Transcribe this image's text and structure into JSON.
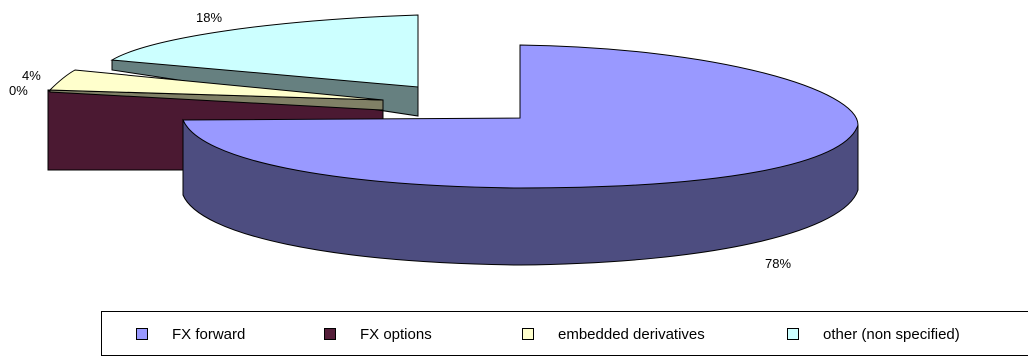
{
  "chart_data": {
    "type": "pie",
    "style": "3d-exploded",
    "slices": [
      {
        "label": "FX forward",
        "value": 78,
        "value_label": "78%",
        "color": "#9999ff",
        "side_color": "#4d4d80"
      },
      {
        "label": "FX options",
        "value": 0,
        "value_label": "0%",
        "color": "#551f3a",
        "side_color": "#4b1932"
      },
      {
        "label": "embedded derivatives",
        "value": 4,
        "value_label": "4%",
        "color": "#ffffcc",
        "side_color": "#808066"
      },
      {
        "label": "other (non specified)",
        "value": 18,
        "value_label": "18%",
        "color": "#ccffff",
        "side_color": "#668080"
      }
    ],
    "legend": {
      "position": "bottom",
      "items": [
        "FX forward",
        "FX options",
        "embedded derivatives",
        "other (non specified)"
      ]
    }
  }
}
